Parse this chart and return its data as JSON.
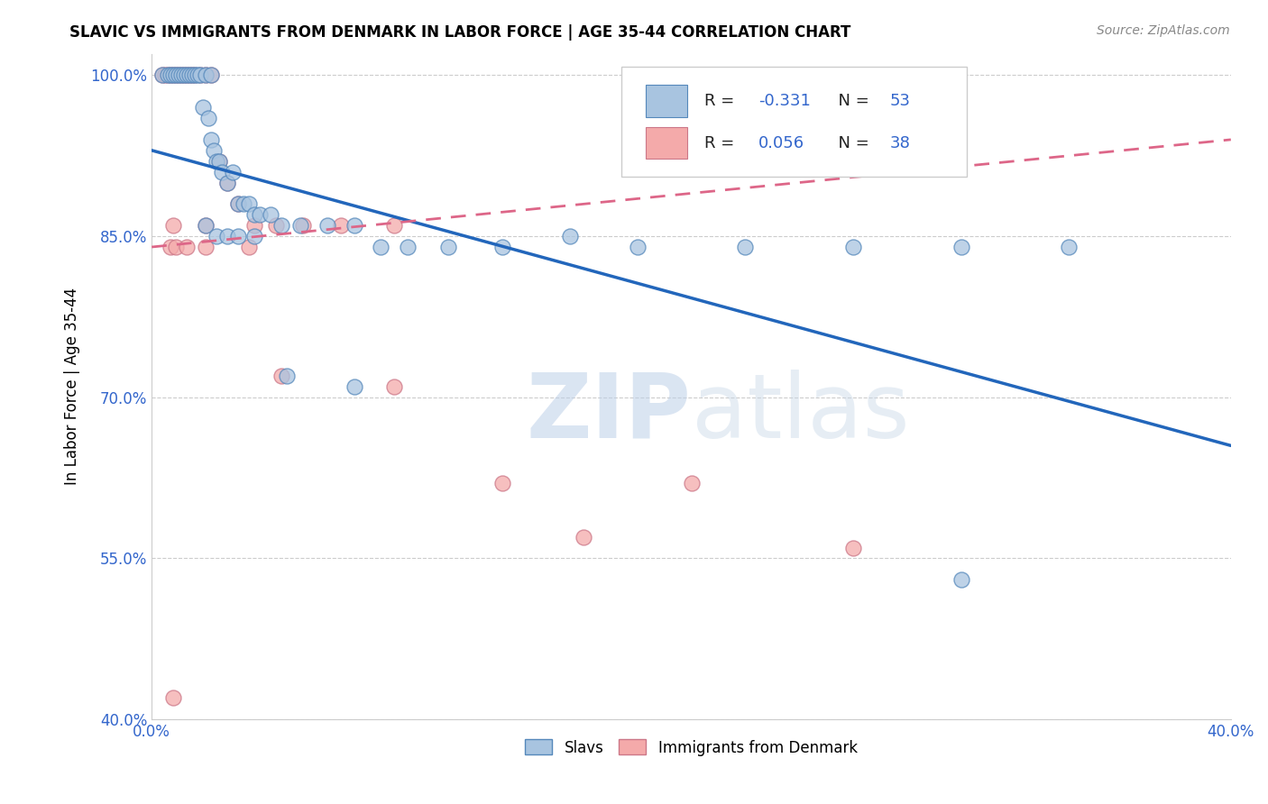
{
  "title": "SLAVIC VS IMMIGRANTS FROM DENMARK IN LABOR FORCE | AGE 35-44 CORRELATION CHART",
  "source": "Source: ZipAtlas.com",
  "ylabel": "In Labor Force | Age 35-44",
  "xlim": [
    0.0,
    0.4
  ],
  "ylim": [
    0.4,
    1.02
  ],
  "xticks": [
    0.0,
    0.08,
    0.16,
    0.24,
    0.32,
    0.4
  ],
  "xticklabels": [
    "0.0%",
    "",
    "",
    "",
    "",
    "40.0%"
  ],
  "yticks": [
    0.4,
    0.55,
    0.7,
    0.85,
    1.0
  ],
  "yticklabels": [
    "40.0%",
    "55.0%",
    "70.0%",
    "85.0%",
    "100.0%"
  ],
  "legend_r_blue": "R = ",
  "legend_val_blue": "-0.331",
  "legend_n_blue": "  N = ",
  "legend_nval_blue": "53",
  "legend_r_pink": "R = ",
  "legend_val_pink": "0.056",
  "legend_n_pink": "  N = ",
  "legend_nval_pink": "38",
  "blue_fill": "#A8C4E0",
  "blue_edge": "#5588BB",
  "pink_fill": "#F4AAAA",
  "pink_edge": "#CC7788",
  "blue_line_color": "#2266BB",
  "pink_line_color": "#DD6688",
  "text_blue": "#3366CC",
  "text_dark": "#222222",
  "watermark_color": "#D0DDEEBB",
  "blue_scatter_x": [
    0.004,
    0.006,
    0.007,
    0.008,
    0.009,
    0.01,
    0.011,
    0.012,
    0.013,
    0.014,
    0.015,
    0.016,
    0.017,
    0.018,
    0.019,
    0.02,
    0.021,
    0.022,
    0.022,
    0.023,
    0.024,
    0.025,
    0.026,
    0.028,
    0.03,
    0.032,
    0.034,
    0.036,
    0.038,
    0.04,
    0.044,
    0.048,
    0.055,
    0.065,
    0.075,
    0.085,
    0.095,
    0.11,
    0.13,
    0.155,
    0.18,
    0.22,
    0.26,
    0.3,
    0.34,
    0.02,
    0.024,
    0.028,
    0.032,
    0.038,
    0.05,
    0.075,
    0.3
  ],
  "blue_scatter_y": [
    1.0,
    1.0,
    1.0,
    1.0,
    1.0,
    1.0,
    1.0,
    1.0,
    1.0,
    1.0,
    1.0,
    1.0,
    1.0,
    1.0,
    0.97,
    1.0,
    0.96,
    1.0,
    0.94,
    0.93,
    0.92,
    0.92,
    0.91,
    0.9,
    0.91,
    0.88,
    0.88,
    0.88,
    0.87,
    0.87,
    0.87,
    0.86,
    0.86,
    0.86,
    0.86,
    0.84,
    0.84,
    0.84,
    0.84,
    0.85,
    0.84,
    0.84,
    0.84,
    0.84,
    0.84,
    0.86,
    0.85,
    0.85,
    0.85,
    0.85,
    0.72,
    0.71,
    0.53
  ],
  "pink_scatter_x": [
    0.004,
    0.005,
    0.006,
    0.007,
    0.008,
    0.009,
    0.01,
    0.011,
    0.012,
    0.013,
    0.014,
    0.015,
    0.016,
    0.018,
    0.02,
    0.022,
    0.025,
    0.028,
    0.032,
    0.038,
    0.046,
    0.056,
    0.07,
    0.09,
    0.007,
    0.009,
    0.013,
    0.02,
    0.036,
    0.048,
    0.09,
    0.13,
    0.16,
    0.2,
    0.26,
    0.008,
    0.02,
    0.008
  ],
  "pink_scatter_y": [
    1.0,
    1.0,
    1.0,
    1.0,
    1.0,
    1.0,
    1.0,
    1.0,
    1.0,
    1.0,
    1.0,
    1.0,
    1.0,
    1.0,
    1.0,
    1.0,
    0.92,
    0.9,
    0.88,
    0.86,
    0.86,
    0.86,
    0.86,
    0.86,
    0.84,
    0.84,
    0.84,
    0.84,
    0.84,
    0.72,
    0.71,
    0.62,
    0.57,
    0.62,
    0.56,
    0.86,
    0.86,
    0.42
  ],
  "blue_trend_x": [
    0.0,
    0.4
  ],
  "blue_trend_y": [
    0.93,
    0.655
  ],
  "pink_trend_x": [
    0.0,
    0.4
  ],
  "pink_trend_y": [
    0.84,
    0.94
  ]
}
